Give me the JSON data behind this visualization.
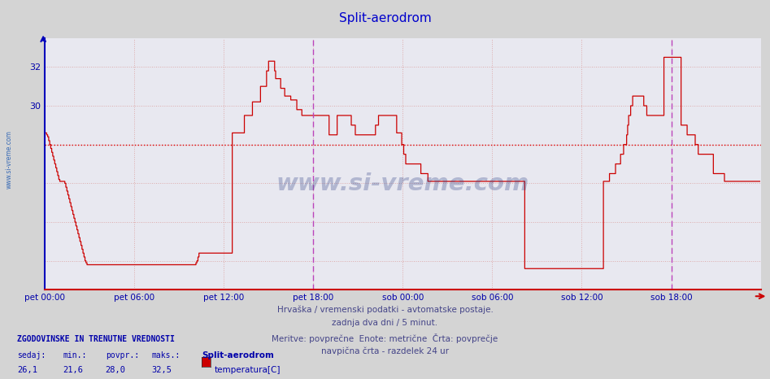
{
  "title": "Split-aerodrom",
  "title_color": "#0000cc",
  "title_fontsize": 11,
  "bg_color": "#d4d4d4",
  "plot_bg_color": "#e8e8f0",
  "xlabel": "",
  "ylabel": "",
  "ylim": [
    20.5,
    33.5
  ],
  "ytick_positions": [
    22,
    24,
    26,
    28,
    30,
    32
  ],
  "ytick_labels": [
    "",
    "",
    "",
    "",
    "30",
    "32"
  ],
  "xtick_labels": [
    "pet 00:00",
    "pet 06:00",
    "pet 12:00",
    "pet 18:00",
    "sob 00:00",
    "sob 06:00",
    "sob 12:00",
    "sob 18:00"
  ],
  "avg_value": 28.0,
  "avg_color": "#dd0000",
  "line_color": "#cc0000",
  "vline_color": "#bb44bb",
  "grid_color": "#ddaaaa",
  "grid_linestyle": "dotted",
  "border_left_color": "#0000bb",
  "border_bottom_color": "#cc0000",
  "text_info_line1": "Hrvaška / vremenski podatki - avtomatske postaje.",
  "text_info_line2": "zadnja dva dni / 5 minut.",
  "text_info_line3": "Meritve: povprečne  Enote: metrične  Črta: povprečje",
  "text_info_line4": "navpična črta - razdelek 24 ur",
  "text_color_info": "#444488",
  "legend_title": "ZGODOVINSKE IN TRENUTNE VREDNOSTI",
  "legend_sedaj": "26,1",
  "legend_min": "21,6",
  "legend_povpr": "28,0",
  "legend_maks": "32,5",
  "legend_station": "Split-aerodrom",
  "legend_series": "temperatura[C]",
  "legend_color": "#cc0000",
  "watermark_text": "www.si-vreme.com",
  "watermark_color": "#334488",
  "watermark_alpha": 0.3,
  "sidewatermark_text": "www.si-vreme.com",
  "sidewatermark_color": "#0044aa",
  "temps": [
    28.6,
    28.6,
    28.5,
    28.4,
    28.2,
    28.0,
    27.8,
    27.6,
    27.4,
    27.2,
    27.0,
    26.8,
    26.6,
    26.4,
    26.2,
    26.1,
    26.1,
    26.1,
    26.1,
    26.1,
    26.0,
    25.8,
    25.6,
    25.4,
    25.2,
    25.0,
    24.8,
    24.6,
    24.4,
    24.2,
    24.0,
    23.8,
    23.6,
    23.4,
    23.2,
    23.0,
    22.8,
    22.6,
    22.4,
    22.2,
    22.0,
    21.9,
    21.8,
    21.8,
    21.8,
    21.8,
    21.8,
    21.8,
    21.8,
    21.8,
    21.8,
    21.8,
    21.8,
    21.8,
    21.8,
    21.8,
    21.8,
    21.8,
    21.8,
    21.8,
    21.8,
    21.8,
    21.8,
    21.8,
    21.8,
    21.8,
    21.8,
    21.8,
    21.8,
    21.8,
    21.8,
    21.8,
    21.8,
    21.8,
    21.8,
    21.8,
    21.8,
    21.8,
    21.8,
    21.8,
    21.8,
    21.8,
    21.8,
    21.8,
    21.8,
    21.8,
    21.8,
    21.8,
    21.8,
    21.8,
    21.8,
    21.8,
    21.8,
    21.8,
    21.8,
    21.8,
    21.8,
    21.8,
    21.8,
    21.8,
    21.8,
    21.8,
    21.8,
    21.8,
    21.8,
    21.8,
    21.8,
    21.8,
    21.8,
    21.8,
    21.8,
    21.8,
    21.8,
    21.8,
    21.8,
    21.8,
    21.8,
    21.8,
    21.8,
    21.8,
    21.8,
    21.8,
    21.8,
    21.8,
    21.8,
    21.8,
    21.8,
    21.8,
    21.8,
    21.8,
    21.8,
    21.8,
    21.8,
    21.8,
    21.8,
    21.8,
    21.8,
    21.8,
    21.8,
    21.8,
    21.8,
    21.8,
    21.8,
    21.8,
    21.8,
    21.8,
    21.8,
    21.8,
    21.8,
    21.8,
    21.9,
    22.0,
    22.2,
    22.4,
    22.4,
    22.4,
    22.4,
    22.4,
    22.4,
    22.4,
    22.4,
    22.4,
    22.4,
    22.4,
    22.4,
    22.4,
    22.4,
    22.4,
    22.4,
    22.4,
    22.4,
    22.4,
    22.4,
    22.4,
    22.4,
    22.4,
    22.4,
    22.4,
    22.4,
    22.4,
    22.4,
    22.4,
    22.4,
    22.4,
    22.4,
    22.4,
    28.6,
    28.6,
    28.6,
    28.6,
    28.6,
    28.6,
    28.6,
    28.6,
    28.6,
    28.6,
    28.6,
    28.6,
    29.5,
    29.5,
    29.5,
    29.5,
    29.5,
    29.5,
    29.5,
    29.5,
    30.2,
    30.2,
    30.2,
    30.2,
    30.2,
    30.2,
    30.2,
    30.2,
    31.0,
    31.0,
    31.0,
    31.0,
    31.0,
    31.0,
    31.8,
    31.8,
    32.3,
    32.3,
    32.3,
    32.3,
    32.3,
    32.3,
    31.8,
    31.4,
    31.4,
    31.4,
    31.4,
    31.4,
    30.9,
    30.9,
    30.9,
    30.9,
    30.5,
    30.5,
    30.5,
    30.5,
    30.5,
    30.5,
    30.3,
    30.3,
    30.3,
    30.3,
    30.3,
    30.3,
    29.8,
    29.8,
    29.8,
    29.8,
    29.8,
    29.5,
    29.5,
    29.5,
    29.5,
    29.5,
    29.5,
    29.5,
    29.5,
    29.5,
    29.5,
    29.5,
    29.5,
    29.5,
    29.5,
    29.5,
    29.5,
    29.5,
    29.5,
    29.5,
    29.5,
    29.5,
    29.5,
    29.5,
    29.5,
    29.5,
    29.5,
    29.5,
    28.5,
    28.5,
    28.5,
    28.5,
    28.5,
    28.5,
    28.5,
    28.5,
    29.5,
    29.5,
    29.5,
    29.5,
    29.5,
    29.5,
    29.5,
    29.5,
    29.5,
    29.5,
    29.5,
    29.5,
    29.5,
    29.5,
    29.0,
    29.0,
    29.0,
    29.0,
    28.5,
    28.5,
    28.5,
    28.5,
    28.5,
    28.5,
    28.5,
    28.5,
    28.5,
    28.5,
    28.5,
    28.5,
    28.5,
    28.5,
    28.5,
    28.5,
    28.5,
    28.5,
    28.5,
    28.5,
    29.0,
    29.0,
    29.0,
    29.5,
    29.5,
    29.5,
    29.5,
    29.5,
    29.5,
    29.5,
    29.5,
    29.5,
    29.5,
    29.5,
    29.5,
    29.5,
    29.5,
    29.5,
    29.5,
    29.5,
    29.5,
    28.6,
    28.6,
    28.6,
    28.6,
    28.6,
    28.0,
    28.0,
    27.5,
    27.5,
    27.0,
    27.0,
    27.0,
    27.0,
    27.0,
    27.0,
    27.0,
    27.0,
    27.0,
    27.0,
    27.0,
    27.0,
    27.0,
    27.0,
    27.0,
    26.5,
    26.5,
    26.5,
    26.5,
    26.5,
    26.5,
    26.5,
    26.1,
    26.1,
    26.1,
    26.1,
    26.1,
    26.1,
    26.1,
    26.1,
    26.1,
    26.1,
    26.1,
    26.1,
    26.1,
    26.1,
    26.1,
    26.1,
    26.1,
    26.1,
    26.1,
    26.1,
    26.1,
    26.1,
    26.1,
    26.1,
    26.1,
    26.1,
    26.1,
    26.1,
    26.1,
    26.1,
    26.1,
    26.1,
    26.1,
    26.1,
    26.1,
    26.1,
    26.1,
    26.1,
    26.1,
    26.1,
    26.1,
    26.1,
    26.1,
    26.1,
    26.1,
    26.1,
    26.1,
    26.1,
    26.1,
    26.1,
    26.1,
    26.1,
    26.1,
    26.1,
    26.1,
    26.1,
    26.1,
    26.1,
    26.1,
    26.1,
    26.1,
    26.1,
    26.1,
    26.1,
    26.1,
    26.1,
    26.1,
    26.1,
    26.1,
    26.1,
    26.1,
    26.1,
    26.1,
    26.1,
    26.1,
    26.1,
    26.1,
    26.1,
    26.1,
    26.1,
    26.1,
    26.1,
    26.1,
    26.1,
    26.1,
    26.1,
    26.1,
    26.1,
    26.1,
    26.1,
    26.1,
    26.1,
    26.1,
    26.1,
    26.1,
    26.1,
    21.6,
    21.6,
    21.6,
    21.6,
    21.6,
    21.6,
    21.6,
    21.6,
    21.6,
    21.6,
    21.6,
    21.6,
    21.6,
    21.6,
    21.6,
    21.6,
    21.6,
    21.6,
    21.6,
    21.6,
    21.6,
    21.6,
    21.6,
    21.6,
    21.6,
    21.6,
    21.6,
    21.6,
    21.6,
    21.6,
    21.6,
    21.6,
    21.6,
    21.6,
    21.6,
    21.6,
    21.6,
    21.6,
    21.6,
    21.6,
    21.6,
    21.6,
    21.6,
    21.6,
    21.6,
    21.6,
    21.6,
    21.6,
    21.6,
    21.6,
    21.6,
    21.6,
    21.6,
    21.6,
    21.6,
    21.6,
    21.6,
    21.6,
    21.6,
    21.6,
    21.6,
    21.6,
    21.6,
    21.6,
    21.6,
    21.6,
    21.6,
    21.6,
    21.6,
    21.6,
    21.6,
    21.6,
    21.6,
    21.6,
    21.6,
    21.6,
    21.6,
    21.6,
    26.1,
    26.1,
    26.1,
    26.1,
    26.1,
    26.1,
    26.5,
    26.5,
    26.5,
    26.5,
    26.5,
    26.5,
    27.0,
    27.0,
    27.0,
    27.0,
    27.0,
    27.5,
    27.5,
    27.5,
    28.0,
    28.0,
    28.0,
    28.5,
    29.0,
    29.5,
    29.5,
    30.0,
    30.0,
    30.5,
    30.5,
    30.5,
    30.5,
    30.5,
    30.5,
    30.5,
    30.5,
    30.5,
    30.5,
    30.5,
    30.0,
    30.0,
    30.0,
    29.5,
    29.5,
    29.5,
    29.5,
    29.5,
    29.5,
    29.5,
    29.5,
    29.5,
    29.5,
    29.5,
    29.5,
    29.5,
    29.5,
    29.5,
    29.5,
    29.5,
    32.5,
    32.5,
    32.5,
    32.5,
    32.5,
    32.5,
    32.5,
    32.5,
    32.5,
    32.5,
    32.5,
    32.5,
    32.5,
    32.5,
    32.5,
    32.5,
    32.5,
    29.0,
    29.0,
    29.0,
    29.0,
    29.0,
    29.0,
    28.5,
    28.5,
    28.5,
    28.5,
    28.5,
    28.5,
    28.5,
    28.5,
    28.0,
    28.0,
    28.0,
    27.5,
    27.5,
    27.5,
    27.5,
    27.5,
    27.5,
    27.5,
    27.5,
    27.5,
    27.5,
    27.5,
    27.5,
    27.5,
    27.5,
    27.5,
    26.5,
    26.5,
    26.5,
    26.5,
    26.5,
    26.5,
    26.5,
    26.5,
    26.5,
    26.5,
    26.5,
    26.1,
    26.1,
    26.1,
    26.1,
    26.1,
    26.1,
    26.1,
    26.1,
    26.1,
    26.1,
    26.1,
    26.1,
    26.1,
    26.1,
    26.1,
    26.1,
    26.1,
    26.1,
    26.1,
    26.1,
    26.1,
    26.1,
    26.1,
    26.1,
    26.1,
    26.1,
    26.1,
    26.1,
    26.1,
    26.1,
    26.1,
    26.1,
    26.1,
    26.1,
    26.1,
    26.1
  ]
}
